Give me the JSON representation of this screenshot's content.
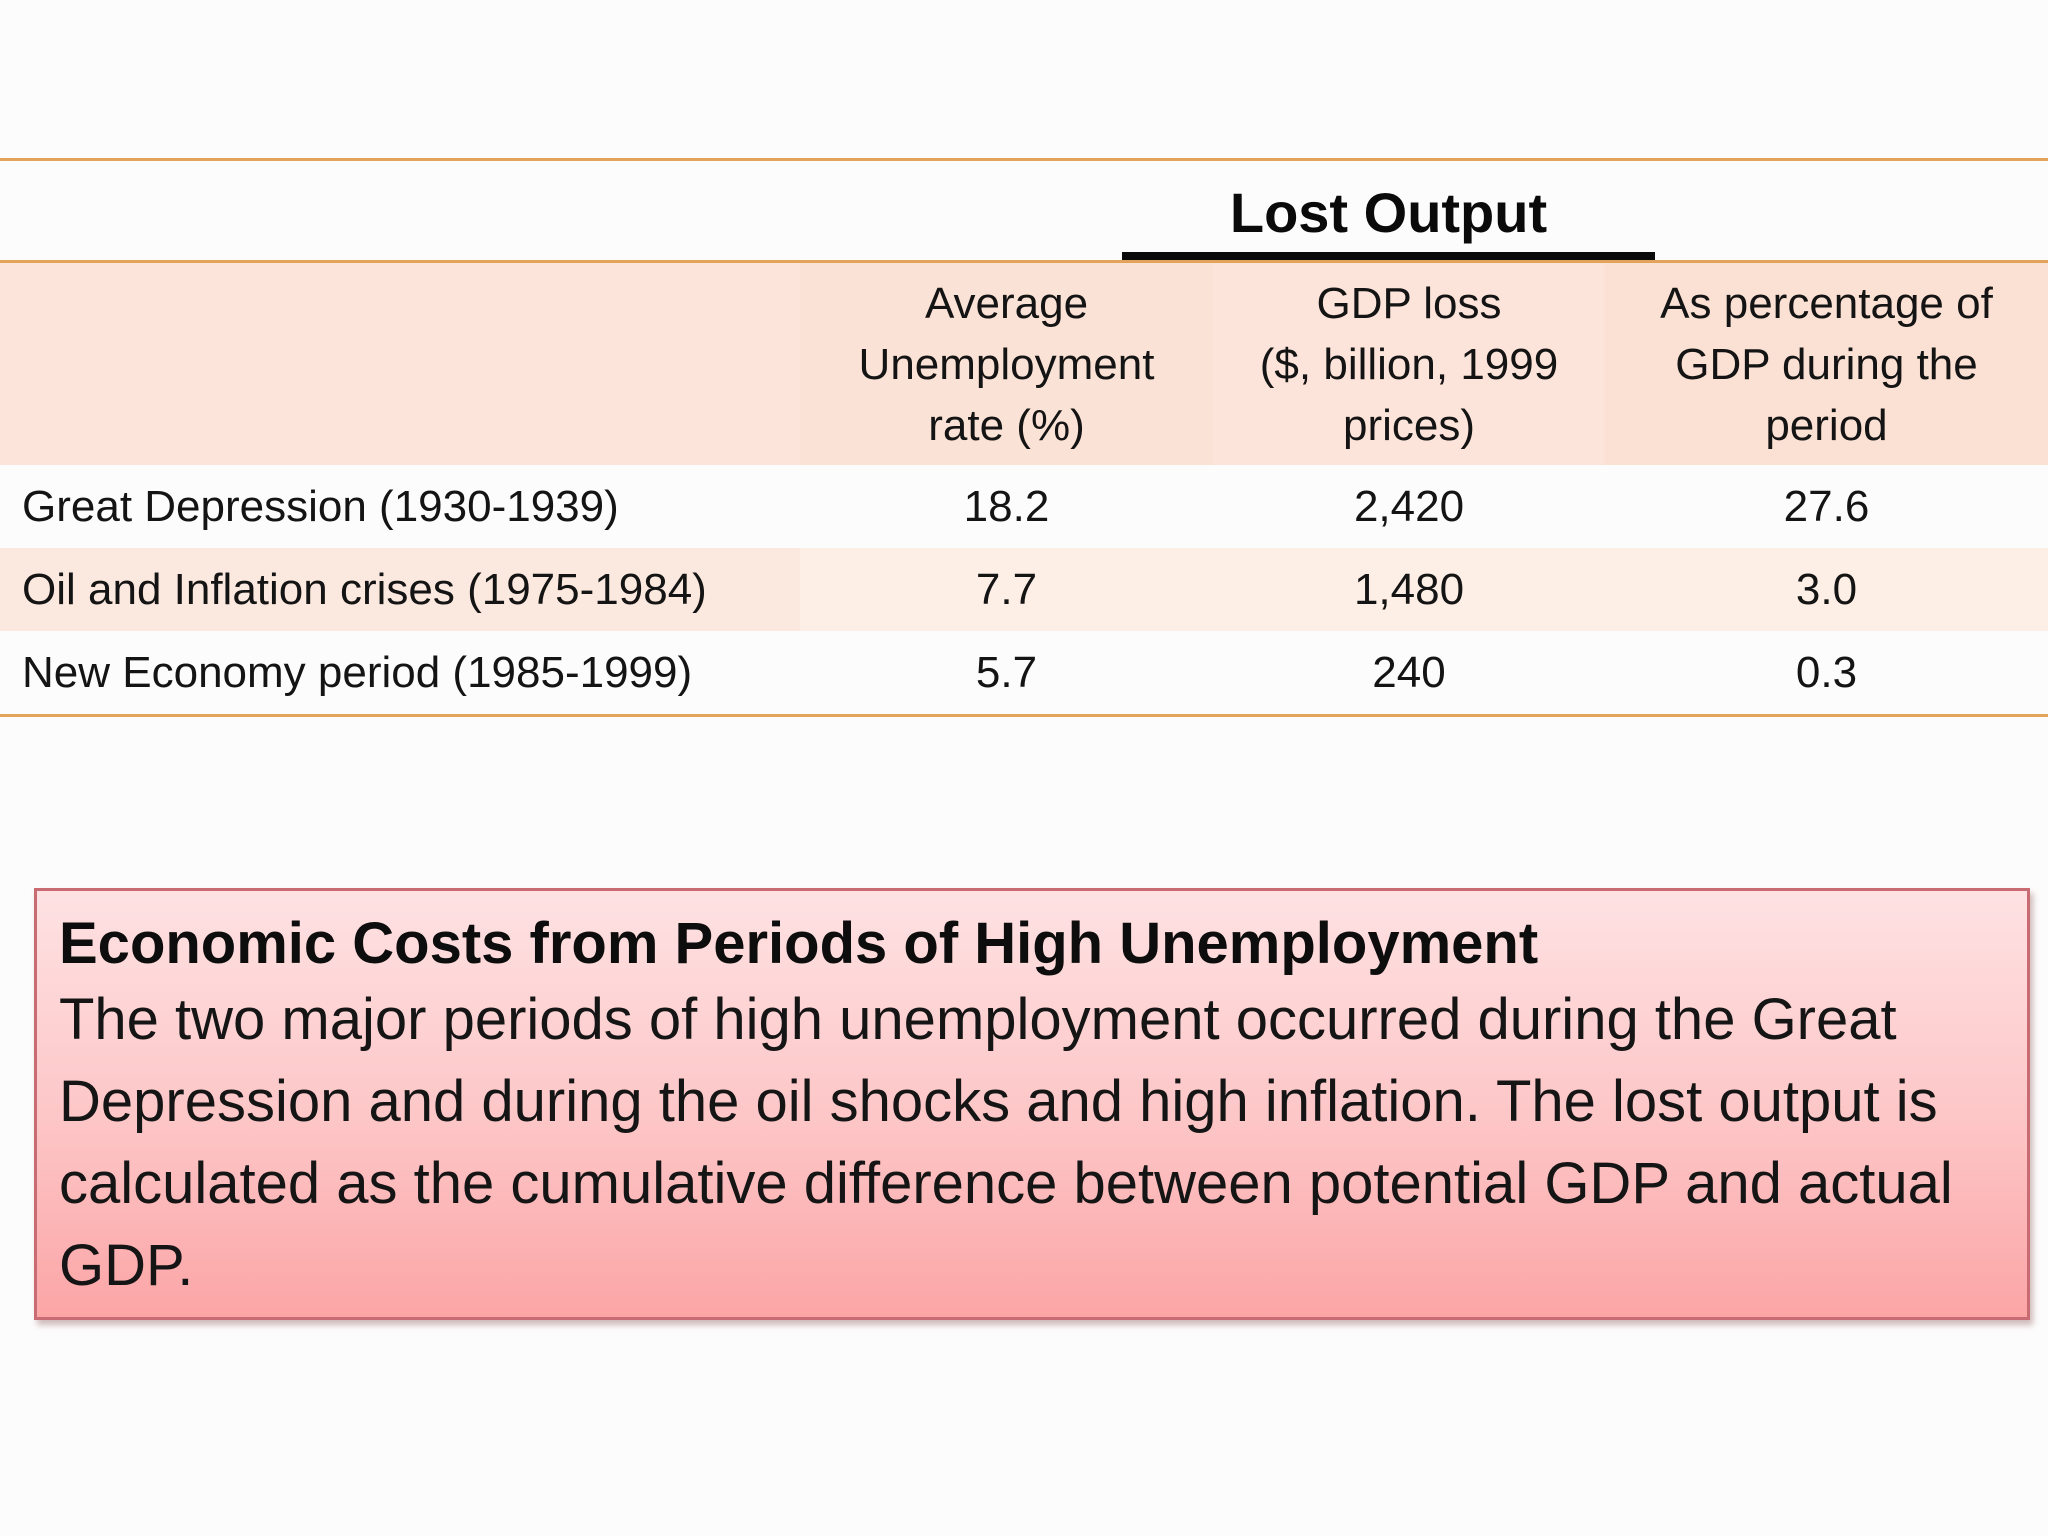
{
  "table": {
    "group_header": "Lost Output",
    "columns": [
      "",
      "Average\nUnemployment\nrate (%)",
      "GDP loss\n($, billion, 1999\nprices)",
      "As percentage of\nGDP during the\nperiod"
    ],
    "rows": [
      {
        "label": "Great Depression (1930-1939)",
        "unemployment": "18.2",
        "gdp_loss": "2,420",
        "pct_gdp": "27.6"
      },
      {
        "label": "Oil and Inflation crises (1975-1984)",
        "unemployment": "7.7",
        "gdp_loss": "1,480",
        "pct_gdp": "3.0"
      },
      {
        "label": "New Economy period (1985-1999)",
        "unemployment": "5.7",
        "gdp_loss": "240",
        "pct_gdp": "0.3"
      }
    ]
  },
  "caption": {
    "title": "Economic Costs from Periods of High Unemployment",
    "body": "The two major periods of high unemployment occurred during the Great Depression and during the oil shocks and high inflation. The lost output is calculated as the cumulative difference between potential GDP and actual GDP."
  },
  "colors": {
    "rule": "#e3a35a",
    "header_fill": "#fce4da",
    "caption_border": "#c96b72",
    "caption_fill_top": "#fee2e3",
    "caption_fill_bottom": "#fca5a6"
  }
}
